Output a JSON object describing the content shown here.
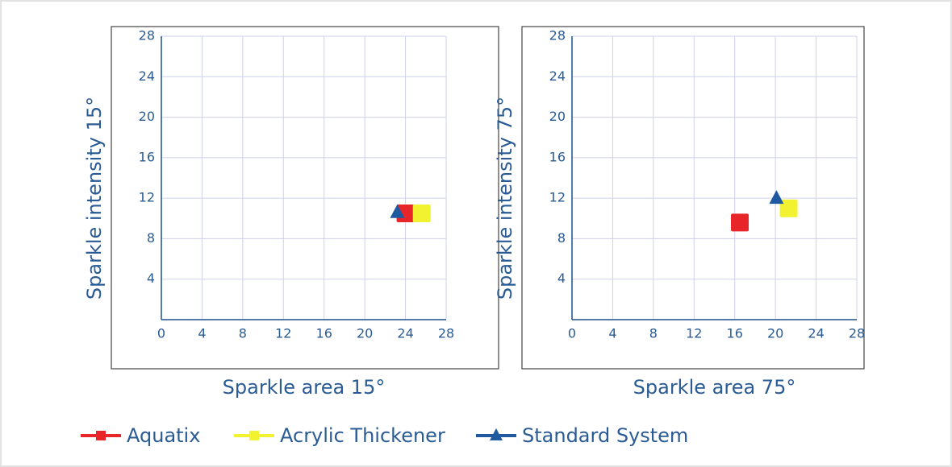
{
  "chart_data": [
    {
      "type": "scatter",
      "x_label": "Sparkle area 15°",
      "y_label": "Sparkle intensity 15°",
      "xlim": [
        0,
        28
      ],
      "ylim": [
        0,
        28
      ],
      "xticks": [
        0,
        4,
        8,
        12,
        16,
        20,
        24,
        28
      ],
      "yticks": [
        4,
        8,
        12,
        16,
        20,
        24,
        28
      ],
      "grid": true,
      "series": [
        {
          "name": "Aquatix",
          "color": "#e8262a",
          "marker": "square",
          "x": [
            24
          ],
          "values": [
            10.5
          ]
        },
        {
          "name": "Acrylic Thickener",
          "color": "#f2f230",
          "marker": "square",
          "x": [
            25.6
          ],
          "values": [
            10.5
          ]
        },
        {
          "name": "Standard System",
          "color": "#1f5aa0",
          "marker": "triangle",
          "x": [
            23.2
          ],
          "values": [
            10.6
          ]
        }
      ]
    },
    {
      "type": "scatter",
      "x_label": "Sparkle area 75°",
      "y_label": "Sparkle intensity 75°",
      "xlim": [
        0,
        28
      ],
      "ylim": [
        0,
        28
      ],
      "xticks": [
        0,
        4,
        8,
        12,
        16,
        20,
        24,
        28
      ],
      "yticks": [
        4,
        8,
        12,
        16,
        20,
        24,
        28
      ],
      "grid": true,
      "series": [
        {
          "name": "Aquatix",
          "color": "#e8262a",
          "marker": "square",
          "x": [
            16.5
          ],
          "values": [
            9.6
          ]
        },
        {
          "name": "Acrylic Thickener",
          "color": "#f2f230",
          "marker": "square",
          "x": [
            21.3
          ],
          "values": [
            11
          ]
        },
        {
          "name": "Standard System",
          "color": "#1f5aa0",
          "marker": "triangle",
          "x": [
            20.1
          ],
          "values": [
            12
          ]
        }
      ]
    }
  ]
}
